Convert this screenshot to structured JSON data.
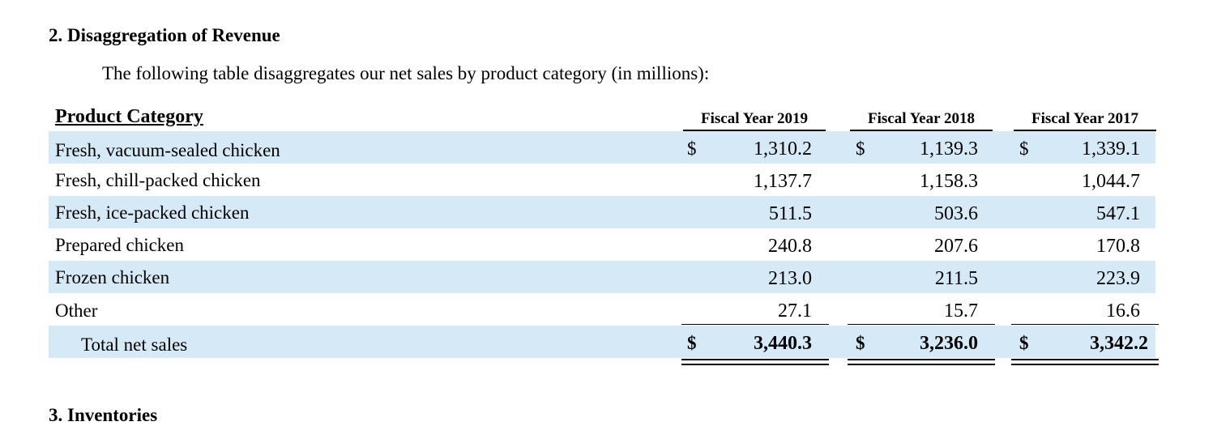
{
  "section_title": "2. Disaggregation of Revenue",
  "intro_text": "The following table disaggregates our net sales by product category (in millions):",
  "table": {
    "category_header": "Product Category",
    "columns": [
      "Fiscal Year 2019",
      "Fiscal Year 2018",
      "Fiscal Year 2017"
    ],
    "currency_symbol": "$",
    "rows": [
      {
        "label": "Fresh, vacuum-sealed chicken",
        "values": [
          "1,310.2",
          "1,139.3",
          "1,339.1"
        ]
      },
      {
        "label": "Fresh, chill-packed chicken",
        "values": [
          "1,137.7",
          "1,158.3",
          "1,044.7"
        ]
      },
      {
        "label": "Fresh, ice-packed chicken",
        "values": [
          "511.5",
          "503.6",
          "547.1"
        ]
      },
      {
        "label": "Prepared chicken",
        "values": [
          "240.8",
          "207.6",
          "170.8"
        ]
      },
      {
        "label": "Frozen chicken",
        "values": [
          "213.0",
          "211.5",
          "223.9"
        ]
      },
      {
        "label": "Other",
        "values": [
          "27.1",
          "15.7",
          "16.6"
        ]
      }
    ],
    "total": {
      "label": "Total net sales",
      "values": [
        "3,440.3",
        "3,236.0",
        "3,342.2"
      ]
    }
  },
  "next_section_title": "3. Inventories",
  "colors": {
    "band": "#d6e9f6"
  }
}
